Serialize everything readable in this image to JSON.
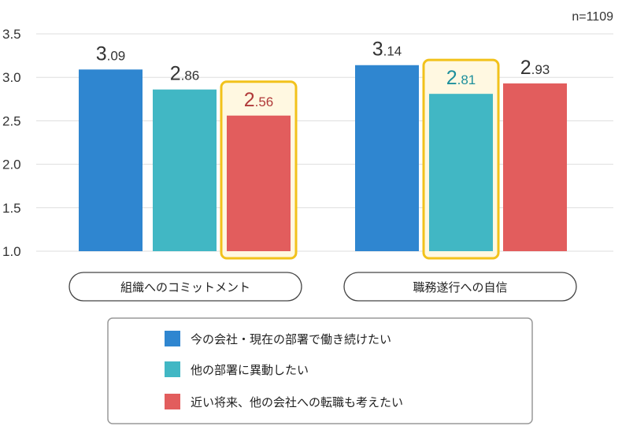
{
  "chart_data": {
    "type": "bar",
    "note": "n=1109",
    "categories": [
      "組織へのコミットメント",
      "職務遂行への自信"
    ],
    "series": [
      {
        "name": "今の会社・現在の部署で働き続けたい",
        "color": "#2f86d0",
        "values": [
          3.09,
          3.14
        ],
        "labels": [
          {
            "int": "3",
            "dec": ".09"
          },
          {
            "int": "3",
            "dec": ".14"
          }
        ]
      },
      {
        "name": "他の部署に異動したい",
        "color": "#41b7c4",
        "values": [
          2.86,
          2.81
        ],
        "labels": [
          {
            "int": "2",
            "dec": ".86"
          },
          {
            "int": "2",
            "dec": ".81"
          }
        ]
      },
      {
        "name": "近い将来、他の会社への転職も考えたい",
        "color": "#e25d5d",
        "values": [
          2.56,
          2.93
        ],
        "labels": [
          {
            "int": "2",
            "dec": ".56"
          },
          {
            "int": "2",
            "dec": ".93"
          }
        ]
      }
    ],
    "yticks": [
      "1.0",
      "1.5",
      "2.0",
      "2.5",
      "3.0",
      "3.5"
    ],
    "ylim": [
      1.0,
      3.5
    ],
    "grid": true,
    "legend_position": "bottom",
    "highlights": [
      {
        "category": 0,
        "series": 2
      },
      {
        "category": 1,
        "series": 1
      }
    ],
    "colors": {
      "highlight_border": "#f2c21b",
      "highlight_fill": "#fff8e1",
      "highlight_text_red": "#b03a3a",
      "highlight_text_teal": "#1d8f9c",
      "value_text": "#333333",
      "grid": "#dddddd"
    }
  }
}
